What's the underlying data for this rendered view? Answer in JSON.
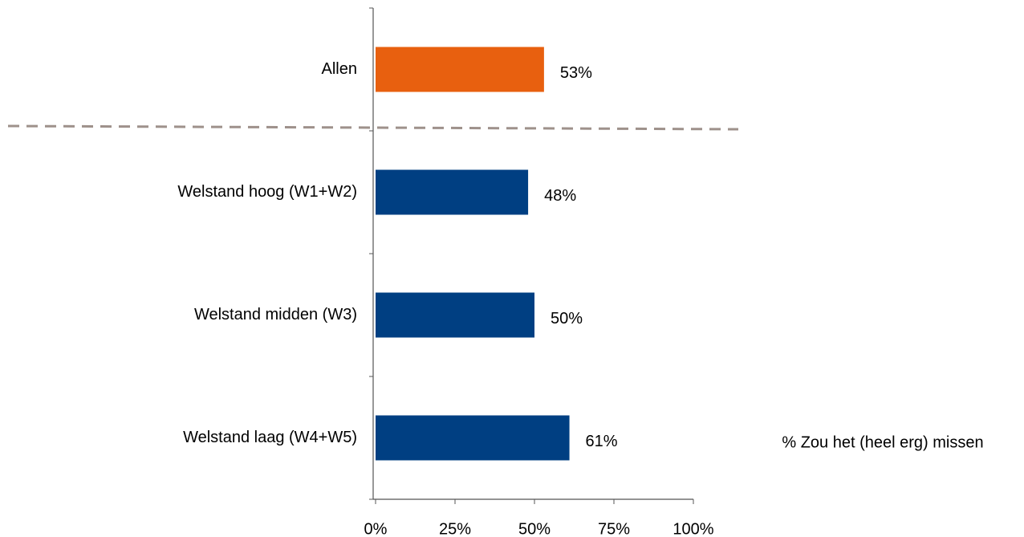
{
  "chart_data": {
    "type": "barh",
    "categories": [
      "Allen",
      "Welstand hoog (W1+W2)",
      "Welstand midden (W3)",
      "Welstand laag (W4+W5)"
    ],
    "series": [
      {
        "name": "% Zou het (heel erg) missen",
        "colors": [
          "#e8600f",
          "#003f82",
          "#003f82",
          "#003f82"
        ],
        "values": [
          53,
          48,
          50,
          61
        ],
        "value_labels": [
          "53%",
          "48%",
          "50%",
          "61%"
        ]
      }
    ],
    "xlim": [
      0,
      100
    ],
    "xticks": [
      {
        "value": 0,
        "label": "0%"
      },
      {
        "value": 25,
        "label": "25%"
      },
      {
        "value": 50,
        "label": "50%"
      },
      {
        "value": 75,
        "label": "75%"
      },
      {
        "value": 100,
        "label": "100%"
      }
    ]
  }
}
